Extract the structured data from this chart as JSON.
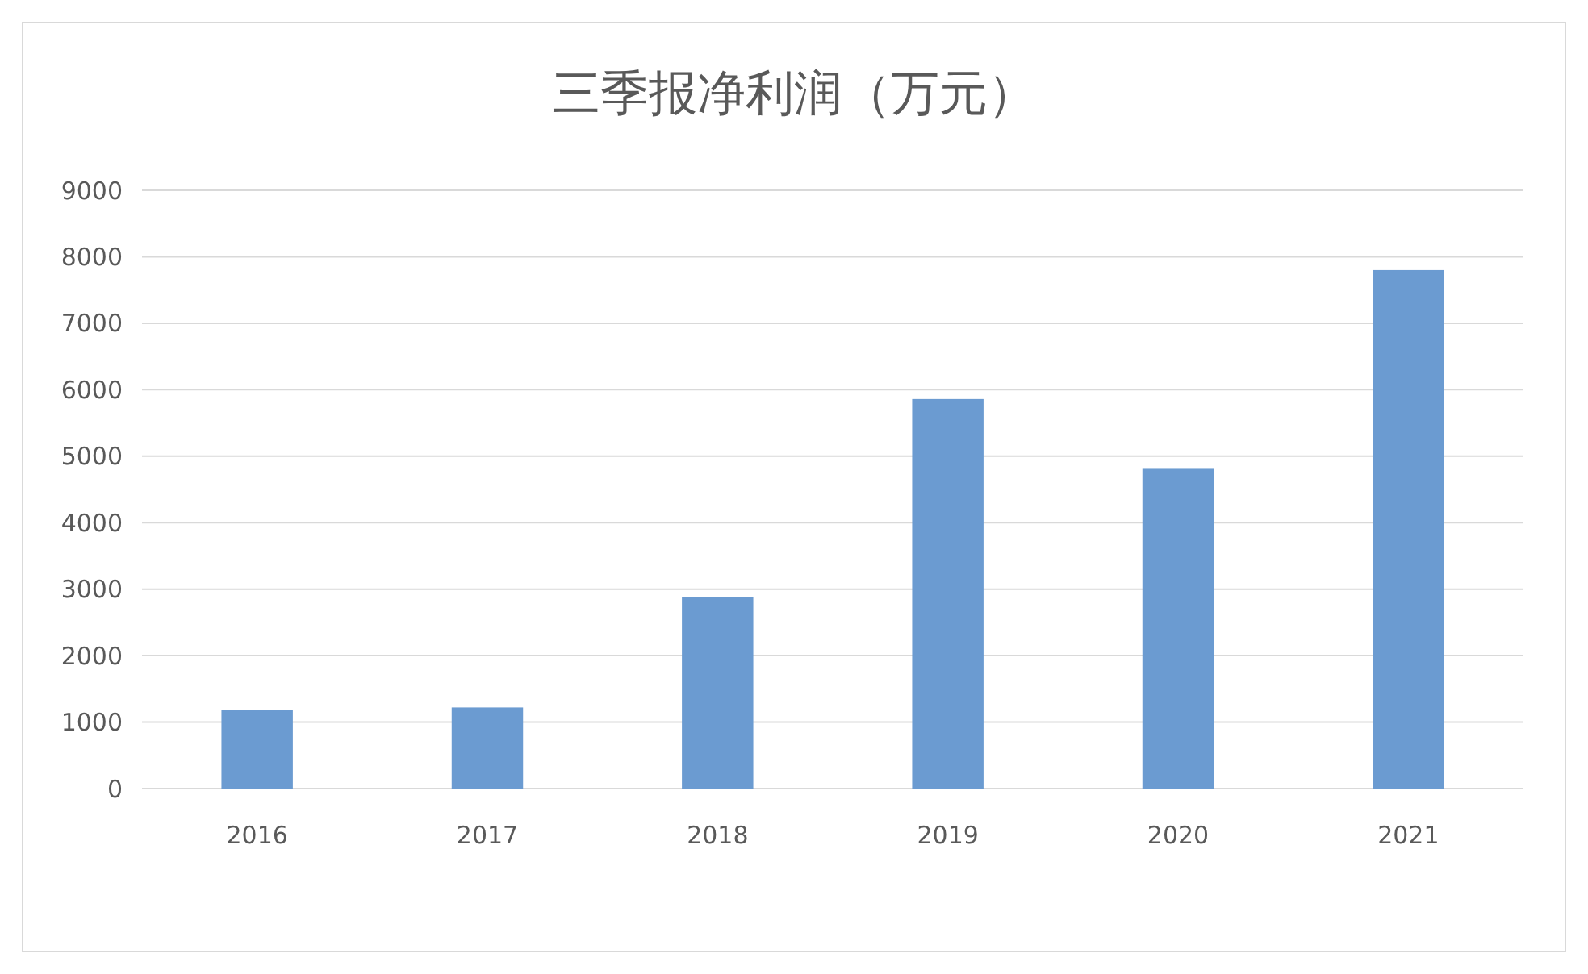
{
  "chart_data": {
    "type": "bar",
    "title": "三季报净利润（万元）",
    "categories": [
      "2016",
      "2017",
      "2018",
      "2019",
      "2020",
      "2021"
    ],
    "values": [
      1180,
      1220,
      2880,
      5860,
      4810,
      7800
    ],
    "color": "#6b9bd1",
    "ylim": [
      0,
      9000
    ],
    "yticks": [
      0,
      1000,
      2000,
      3000,
      4000,
      5000,
      6000,
      7000,
      8000,
      9000
    ],
    "grid": "y"
  }
}
